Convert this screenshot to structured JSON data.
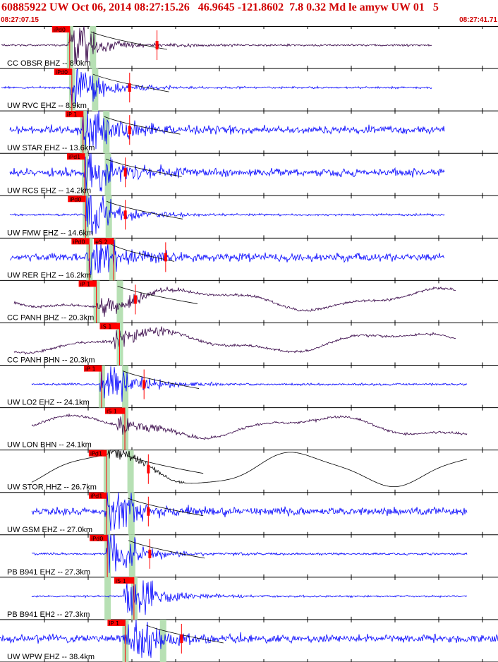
{
  "header": {
    "title": "60885922 UW Oct 06, 2014 08:27:15.26   46.9645 -121.8602  7.8 0.32 Md le amyw UW 01   5",
    "time_start": "08:27:07.15",
    "time_end": "08:27:41.71"
  },
  "colors": {
    "title": "#d00000",
    "trace_blue": "#0000ff",
    "trace_purple": "#330044",
    "trace_black": "#000000",
    "pick": "#ff0000",
    "window": "#b7e0b4",
    "border": "#000000"
  },
  "traces": [
    {
      "label": "CC OBSR BHZ -- 8.0km",
      "color": "purple",
      "pick": "iPd0",
      "pick_time": 4.64,
      "spick": null,
      "s_time": 7.19,
      "bars": [
        4.64,
        6.23
      ],
      "marker": 10.7,
      "pos": [
        4.6
      ],
      "wave": "local"
    },
    {
      "label": "UW RVC EHZ -- 8.9km",
      "color": "blue",
      "pick": "iPd0",
      "pick_time": 4.79,
      "spick": null,
      "s_time": 7.32,
      "bars": [
        4.79,
        6.38
      ],
      "marker": 8.8,
      "pos": [
        4.8
      ],
      "wave": "local"
    },
    {
      "label": "UW STAR EHZ -- 13.6km",
      "color": "blue",
      "pick": "iP 1",
      "pick_time": 5.57,
      "spick": null,
      "s_time": 8.1,
      "bars": [
        5.57,
        7.16
      ],
      "marker": 8.8,
      "pos": [
        3.6,
        10.9
      ],
      "wave": "noisy"
    },
    {
      "label": "UW RCS EHZ -- 14.2km",
      "color": "blue",
      "pick": "iPd1",
      "pick_time": 5.68,
      "spick": null,
      "s_time": 8.21,
      "bars": [
        5.68,
        7.27
      ],
      "marker": 8.5,
      "pos": [
        0.5,
        3.0
      ],
      "wave": "noisy"
    },
    {
      "label": "UW FMW EHZ -- 14.6km",
      "color": "blue",
      "pick": "iPd0",
      "pick_time": 5.74,
      "spick": null,
      "s_time": 8.27,
      "bars": [
        5.74,
        7.33
      ],
      "marker": 8.5,
      "pos": [],
      "wave": "local"
    },
    {
      "label": "UW RER EHZ -- 16.2km",
      "color": "blue",
      "pick": "iPd0",
      "pick_time": 5.99,
      "spick": "eS 2",
      "s_time": 7.69,
      "bars": [
        5.99,
        7.58
      ],
      "marker": 11.3,
      "pos": [],
      "wave": "noisy"
    },
    {
      "label": "CC PANH BHZ -- 20.3km",
      "color": "purple",
      "pick": "iP 1",
      "pick_time": 6.49,
      "spick": null,
      "s_time": 9.3,
      "bars": [
        6.49,
        8.1
      ],
      "marker": 9.2,
      "pos": [],
      "wave": "longperiod"
    },
    {
      "label": "CC PANH BHN -- 20.3km",
      "color": "purple",
      "pick": null,
      "pick_time": null,
      "spick": "iS 1",
      "s_time": 8.1,
      "bars": [
        8.1
      ],
      "marker": null,
      "pos": [],
      "wave": "longperiod2"
    },
    {
      "label": "UW LO2 EHZ -- 24.1km",
      "color": "blue",
      "pick": "iP 1",
      "pick_time": 6.85,
      "spick": null,
      "s_time": 9.4,
      "bars": [
        6.85,
        8.47
      ],
      "marker": 9.8,
      "pos": [],
      "wave": "local"
    },
    {
      "label": "UW LON BHN -- 24.1km",
      "color": "purple",
      "pick": null,
      "pick_time": null,
      "spick": "iS 1",
      "s_time": 8.47,
      "bars": [
        8.47
      ],
      "marker": null,
      "pos": [],
      "wave": "longperiod3"
    },
    {
      "label": "UW STOR HHZ -- 26.7km",
      "color": "black",
      "pick": "iPd1",
      "pick_time": 7.19,
      "spick": null,
      "s_time": 9.7,
      "bars": [
        7.19,
        8.84
      ],
      "marker": 10.1,
      "pos": [],
      "wave": "swell"
    },
    {
      "label": "UW GSM EHZ -- 27.0km",
      "color": "blue",
      "pick": "iPd1",
      "pick_time": 7.2,
      "spick": null,
      "s_time": 9.7,
      "bars": [
        7.2,
        8.9
      ],
      "marker": 10.1,
      "pos": [],
      "wave": "noisy"
    },
    {
      "label": "PB B941 EHZ -- 27.3km",
      "color": "blue",
      "pick": "iPd0",
      "pick_time": 7.25,
      "spick": null,
      "s_time": 9.8,
      "bars": [
        7.25,
        8.95
      ],
      "marker": 10.2,
      "pos": [],
      "wave": "local"
    },
    {
      "label": "PB B941 EH2 -- 27.3km",
      "color": "blue",
      "pick": null,
      "pick_time": null,
      "spick": "iS 1",
      "s_time": 9.1,
      "bars": [
        7.25,
        9.1
      ],
      "marker": null,
      "pos": [],
      "wave": "local"
    },
    {
      "label": "UW WPW EHZ -- 38.4km",
      "color": "blue",
      "pick": "iP 1",
      "pick_time": 8.49,
      "spick": null,
      "s_time": 11.1,
      "bars": [
        8.49,
        11.1
      ],
      "marker": 12.4,
      "pos": [],
      "wave": "noisy"
    }
  ]
}
